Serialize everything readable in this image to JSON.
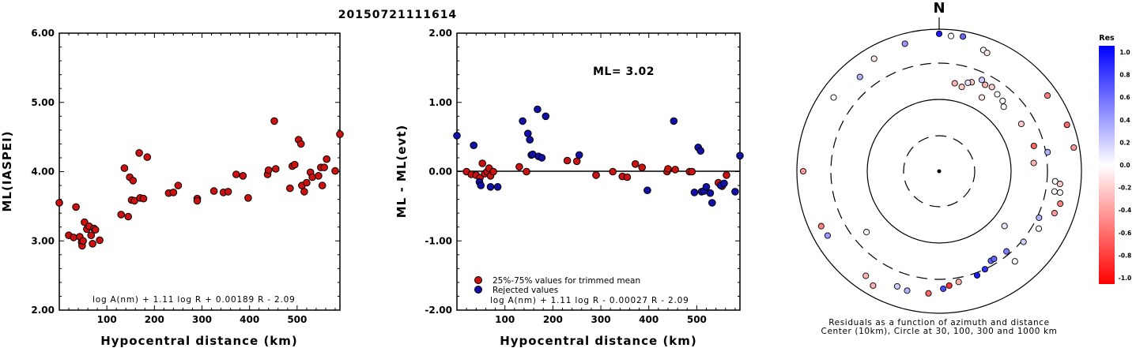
{
  "figure_title": "20150721111614",
  "chart_data": [
    {
      "type": "scatter",
      "xlabel": "Hypocentral distance (km)",
      "ylabel": "ML(IASPEI)",
      "xlim": [
        0,
        590
      ],
      "ylim": [
        2.0,
        6.0
      ],
      "xticks": [
        "100",
        "200",
        "300",
        "400",
        "500"
      ],
      "yticks": [
        "2.00",
        "3.00",
        "4.00",
        "5.00",
        "6.00"
      ],
      "formula": "log A(nm) + 1.11 log R + 0.00189 R - 2.09",
      "series": [
        {
          "color": "#cc1111",
          "points": [
            [
              0,
              3.55
            ],
            [
              20,
              3.08
            ],
            [
              30,
              3.05
            ],
            [
              35,
              3.49
            ],
            [
              43,
              3.06
            ],
            [
              47,
              2.98
            ],
            [
              48,
              2.93
            ],
            [
              50,
              3.0
            ],
            [
              53,
              3.27
            ],
            [
              58,
              3.17
            ],
            [
              63,
              3.21
            ],
            [
              67,
              3.08
            ],
            [
              70,
              2.96
            ],
            [
              73,
              3.18
            ],
            [
              76,
              3.16
            ],
            [
              85,
              3.01
            ],
            [
              130,
              3.38
            ],
            [
              137,
              4.05
            ],
            [
              145,
              3.35
            ],
            [
              148,
              3.92
            ],
            [
              152,
              3.59
            ],
            [
              155,
              3.87
            ],
            [
              158,
              3.58
            ],
            [
              168,
              4.27
            ],
            [
              170,
              3.62
            ],
            [
              177,
              3.61
            ],
            [
              185,
              4.21
            ],
            [
              230,
              3.69
            ],
            [
              240,
              3.7
            ],
            [
              250,
              3.8
            ],
            [
              290,
              3.61
            ],
            [
              290,
              3.58
            ],
            [
              325,
              3.72
            ],
            [
              345,
              3.7
            ],
            [
              355,
              3.71
            ],
            [
              372,
              3.96
            ],
            [
              386,
              3.94
            ],
            [
              397,
              3.62
            ],
            [
              438,
              3.96
            ],
            [
              440,
              4.02
            ],
            [
              452,
              4.73
            ],
            [
              455,
              4.04
            ],
            [
              485,
              3.76
            ],
            [
              490,
              4.08
            ],
            [
              495,
              4.1
            ],
            [
              503,
              4.46
            ],
            [
              508,
              4.4
            ],
            [
              510,
              3.8
            ],
            [
              515,
              3.71
            ],
            [
              520,
              3.84
            ],
            [
              528,
              3.99
            ],
            [
              532,
              3.92
            ],
            [
              545,
              3.94
            ],
            [
              550,
              4.06
            ],
            [
              553,
              3.8
            ],
            [
              557,
              4.06
            ],
            [
              562,
              4.18
            ],
            [
              580,
              4.01
            ],
            [
              590,
              4.54
            ]
          ]
        }
      ]
    },
    {
      "type": "scatter",
      "xlabel": "Hypocentral distance (km)",
      "ylabel": "ML - ML(evt)",
      "xlim": [
        0,
        590
      ],
      "ylim": [
        -2.0,
        2.0
      ],
      "xticks": [
        "100",
        "200",
        "300",
        "400",
        "500"
      ],
      "yticks": [
        "-2.00",
        "-1.00",
        "0.00",
        "1.00",
        "2.00"
      ],
      "annotation": "ML= 3.02",
      "formula": "log A(nm) + 1.11 log R - 0.00027 R - 2.09",
      "legend": [
        "25%-75% values for trimmed mean",
        "Rejected values"
      ],
      "legend_position": "bottom-left",
      "series": [
        {
          "name": "25%-75% values for trimmed mean",
          "color": "#cc1111",
          "points": [
            [
              20,
              0.0
            ],
            [
              30,
              -0.04
            ],
            [
              40,
              -0.05
            ],
            [
              48,
              -0.09
            ],
            [
              53,
              0.12
            ],
            [
              58,
              -0.03
            ],
            [
              63,
              0.0
            ],
            [
              67,
              0.05
            ],
            [
              70,
              -0.06
            ],
            [
              76,
              0.0
            ],
            [
              130,
              0.07
            ],
            [
              145,
              0.0
            ],
            [
              230,
              0.16
            ],
            [
              250,
              0.15
            ],
            [
              290,
              -0.05
            ],
            [
              290,
              -0.05
            ],
            [
              325,
              0.0
            ],
            [
              345,
              -0.07
            ],
            [
              355,
              -0.08
            ],
            [
              372,
              0.11
            ],
            [
              386,
              0.06
            ],
            [
              438,
              0.0
            ],
            [
              440,
              0.04
            ],
            [
              455,
              0.03
            ],
            [
              485,
              0.0
            ],
            [
              490,
              0.0
            ],
            [
              545,
              -0.16
            ],
            [
              553,
              -0.21
            ],
            [
              562,
              -0.05
            ]
          ]
        },
        {
          "name": "Rejected values",
          "color": "#1111aa",
          "points": [
            [
              0,
              0.52
            ],
            [
              35,
              0.38
            ],
            [
              47,
              -0.15
            ],
            [
              50,
              -0.2
            ],
            [
              70,
              -0.22
            ],
            [
              85,
              -0.22
            ],
            [
              137,
              0.73
            ],
            [
              148,
              0.55
            ],
            [
              152,
              0.46
            ],
            [
              155,
              0.24
            ],
            [
              158,
              0.25
            ],
            [
              168,
              0.9
            ],
            [
              170,
              0.22
            ],
            [
              177,
              0.2
            ],
            [
              185,
              0.8
            ],
            [
              255,
              0.24
            ],
            [
              397,
              -0.27
            ],
            [
              452,
              0.73
            ],
            [
              495,
              -0.3
            ],
            [
              503,
              0.35
            ],
            [
              508,
              0.3
            ],
            [
              510,
              -0.29
            ],
            [
              515,
              -0.28
            ],
            [
              520,
              -0.22
            ],
            [
              528,
              -0.31
            ],
            [
              532,
              -0.45
            ],
            [
              550,
              -0.2
            ],
            [
              557,
              -0.17
            ],
            [
              580,
              -0.29
            ],
            [
              590,
              0.23
            ]
          ]
        }
      ]
    }
  ],
  "polar": {
    "north_label": "N",
    "caption_line1": "Residuals as a function of azimuth and distance",
    "caption_line2": "Center (10km), Circle at 30, 100, 300 and 1000 km",
    "colorbar_title": "Res",
    "colorbar_ticks": [
      "1.0",
      "0.8",
      "0.6",
      "0.4",
      "0.2",
      "0.0",
      "-0.2",
      "-0.4",
      "-0.6",
      "-0.8",
      "-1.0"
    ],
    "points": [
      {
        "az": 0,
        "dist": 850,
        "res": 0.9
      },
      {
        "az": 5,
        "dist": 800,
        "res": 0.0
      },
      {
        "az": 10,
        "dist": 830,
        "res": 0.6
      },
      {
        "az": 20,
        "dist": 630,
        "res": 0.0
      },
      {
        "az": 22,
        "dist": 600,
        "res": -0.1
      },
      {
        "az": 345,
        "dist": 700,
        "res": 0.4
      },
      {
        "az": 330,
        "dist": 650,
        "res": -0.1
      },
      {
        "az": 320,
        "dist": 510,
        "res": 0.3
      },
      {
        "az": 305,
        "dist": 620,
        "res": 0.0
      },
      {
        "az": 55,
        "dist": 700,
        "res": -0.5
      },
      {
        "az": 70,
        "dist": 800,
        "res": -0.6
      },
      {
        "az": 80,
        "dist": 820,
        "res": -0.4
      },
      {
        "az": 270,
        "dist": 800,
        "res": -0.4
      },
      {
        "az": 20,
        "dist": 200,
        "res": -0.2
      },
      {
        "az": 25,
        "dist": 240,
        "res": 0.2
      },
      {
        "az": 18,
        "dist": 190,
        "res": 0.1
      },
      {
        "az": 28,
        "dist": 220,
        "res": -0.3
      },
      {
        "az": 32,
        "dist": 230,
        "res": -0.2
      },
      {
        "az": 37,
        "dist": 210,
        "res": 0.0
      },
      {
        "az": 42,
        "dist": 200,
        "res": 0.0
      },
      {
        "az": 45,
        "dist": 180,
        "res": 0.0
      },
      {
        "az": 30,
        "dist": 150,
        "res": -0.1
      },
      {
        "az": 15,
        "dist": 160,
        "res": -0.2
      },
      {
        "az": 10,
        "dist": 170,
        "res": -0.3
      },
      {
        "az": 60,
        "dist": 200,
        "res": -0.2
      },
      {
        "az": 75,
        "dist": 220,
        "res": -0.6
      },
      {
        "az": 85,
        "dist": 200,
        "res": -0.3
      },
      {
        "az": 80,
        "dist": 320,
        "res": 0.3
      },
      {
        "az": 95,
        "dist": 400,
        "res": 0.0
      },
      {
        "az": 100,
        "dist": 410,
        "res": 0.0
      },
      {
        "az": 96,
        "dist": 480,
        "res": -0.2
      },
      {
        "az": 100,
        "dist": 500,
        "res": 0.0
      },
      {
        "az": 105,
        "dist": 550,
        "res": -0.5
      },
      {
        "az": 110,
        "dist": 500,
        "res": -0.4
      },
      {
        "az": 115,
        "dist": 320,
        "res": 0.3
      },
      {
        "az": 120,
        "dist": 380,
        "res": 0.0
      },
      {
        "az": 130,
        "dist": 320,
        "res": 0.2
      },
      {
        "az": 140,
        "dist": 270,
        "res": 0.5
      },
      {
        "az": 150,
        "dist": 260,
        "res": 0.6
      },
      {
        "az": 155,
        "dist": 300,
        "res": 0.8
      },
      {
        "az": 160,
        "dist": 330,
        "res": 0.9
      },
      {
        "az": 170,
        "dist": 350,
        "res": -0.3
      },
      {
        "az": 175,
        "dist": 380,
        "res": -0.8
      },
      {
        "az": 178,
        "dist": 420,
        "res": 0.7
      },
      {
        "az": 185,
        "dist": 500,
        "res": -0.6
      },
      {
        "az": 195,
        "dist": 520,
        "res": 0.3
      },
      {
        "az": 200,
        "dist": 500,
        "res": 0.2
      },
      {
        "az": 215,
        "dist": 600,
        "res": -0.3
      },
      {
        "az": 230,
        "dist": 200,
        "res": 0.0
      },
      {
        "az": 240,
        "dist": 620,
        "res": 0.4
      },
      {
        "az": 245,
        "dist": 650,
        "res": -0.5
      },
      {
        "az": 210,
        "dist": 700,
        "res": -0.3
      },
      {
        "az": 140,
        "dist": 420,
        "res": 0.0
      },
      {
        "az": 148,
        "dist": 260,
        "res": 0.6
      },
      {
        "az": 130,
        "dist": 150,
        "res": 0.1
      }
    ]
  }
}
